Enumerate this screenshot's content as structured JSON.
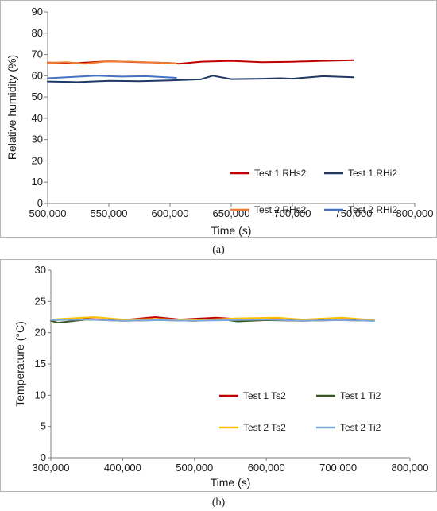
{
  "chart_data": [
    {
      "panel_label": "(a)",
      "type": "line",
      "title": "",
      "xlabel": "Time (s)",
      "ylabel": "Relative humidity (%)",
      "xlim": [
        500000,
        800000
      ],
      "ylim": [
        0,
        90
      ],
      "x_ticks": [
        500000,
        550000,
        600000,
        650000,
        700000,
        750000,
        800000
      ],
      "x_tick_labels": [
        "500,000",
        "550,000",
        "600,000",
        "650,000",
        "700,000",
        "750,000",
        "800,000"
      ],
      "y_ticks": [
        0,
        10,
        20,
        30,
        40,
        50,
        60,
        70,
        80,
        90
      ],
      "y_tick_labels": [
        "0",
        "10",
        "20",
        "30",
        "40",
        "50",
        "60",
        "70",
        "80",
        "90"
      ],
      "grid": false,
      "legend_position": "lower-right",
      "series": [
        {
          "name": "Test 1 RHs2",
          "color": "#c00000",
          "x": [
            500000,
            525000,
            550000,
            575000,
            600000,
            607000,
            625000,
            650000,
            675000,
            700000,
            725000,
            750000
          ],
          "y": [
            66.2,
            66.0,
            66.8,
            66.4,
            66.0,
            65.6,
            66.6,
            67.0,
            66.4,
            66.6,
            67.0,
            67.3
          ]
        },
        {
          "name": "Test 1 RHi2",
          "color": "#1f3864",
          "x": [
            500000,
            525000,
            550000,
            575000,
            600000,
            625000,
            635000,
            650000,
            675000,
            690000,
            700000,
            725000,
            750000
          ],
          "y": [
            57.3,
            57.0,
            57.6,
            57.4,
            57.8,
            58.3,
            60.0,
            58.4,
            58.6,
            58.8,
            58.6,
            59.8,
            59.3
          ]
        },
        {
          "name": "Test 2 RHs2",
          "color": "#ed7d31",
          "x": [
            500000,
            515000,
            530000,
            550000,
            570000,
            590000,
            605000
          ],
          "y": [
            66.0,
            66.4,
            65.6,
            66.8,
            66.6,
            66.2,
            65.8
          ]
        },
        {
          "name": "Test 2 RHi2",
          "color": "#4472c4",
          "x": [
            500000,
            520000,
            540000,
            560000,
            580000,
            600000,
            605000
          ],
          "y": [
            58.8,
            59.4,
            60.0,
            59.6,
            59.8,
            59.2,
            59.0
          ]
        }
      ]
    },
    {
      "panel_label": "(b)",
      "type": "line",
      "title": "",
      "xlabel": "Time (s)",
      "ylabel": "Temperature (°C)",
      "xlim": [
        300000,
        800000
      ],
      "ylim": [
        0,
        30
      ],
      "x_ticks": [
        300000,
        400000,
        500000,
        600000,
        700000,
        800000
      ],
      "x_tick_labels": [
        "300,000",
        "400,000",
        "500,000",
        "600,000",
        "700,000",
        "800,000"
      ],
      "y_ticks": [
        0,
        5,
        10,
        15,
        20,
        25,
        30
      ],
      "y_tick_labels": [
        "0",
        "5",
        "10",
        "15",
        "20",
        "25",
        "30"
      ],
      "grid": false,
      "legend_position": "lower-right",
      "series": [
        {
          "name": "Test 1 Ts2",
          "color": "#c00000",
          "x": [
            300000,
            350000,
            400000,
            445000,
            480000,
            530000,
            570000,
            610000,
            650000,
            700000,
            750000
          ],
          "y": [
            22.0,
            22.2,
            22.0,
            22.5,
            22.1,
            22.4,
            22.1,
            22.3,
            22.0,
            22.2,
            22.0
          ]
        },
        {
          "name": "Test 1 Ti2",
          "color": "#385723",
          "x": [
            300000,
            310000,
            350000,
            400000,
            450000,
            500000,
            540000,
            560000,
            600000,
            650000,
            700000,
            750000
          ],
          "y": [
            21.9,
            21.6,
            22.1,
            21.9,
            22.0,
            21.9,
            22.1,
            21.8,
            22.0,
            21.9,
            22.0,
            21.9
          ]
        },
        {
          "name": "Test 2 Ts2",
          "color": "#ffc000",
          "x": [
            300000,
            360000,
            400000,
            450000,
            500000,
            560000,
            615000,
            650000,
            705000,
            750000
          ],
          "y": [
            22.1,
            22.5,
            22.1,
            22.2,
            22.0,
            22.3,
            22.4,
            22.1,
            22.4,
            22.0
          ]
        },
        {
          "name": "Test 2 Ti2",
          "color": "#7ea6d8",
          "x": [
            300000,
            350000,
            400000,
            450000,
            500000,
            550000,
            600000,
            650000,
            700000,
            750000
          ],
          "y": [
            22.0,
            22.1,
            21.9,
            22.0,
            21.9,
            22.0,
            22.1,
            21.9,
            22.0,
            21.9
          ]
        }
      ]
    }
  ]
}
